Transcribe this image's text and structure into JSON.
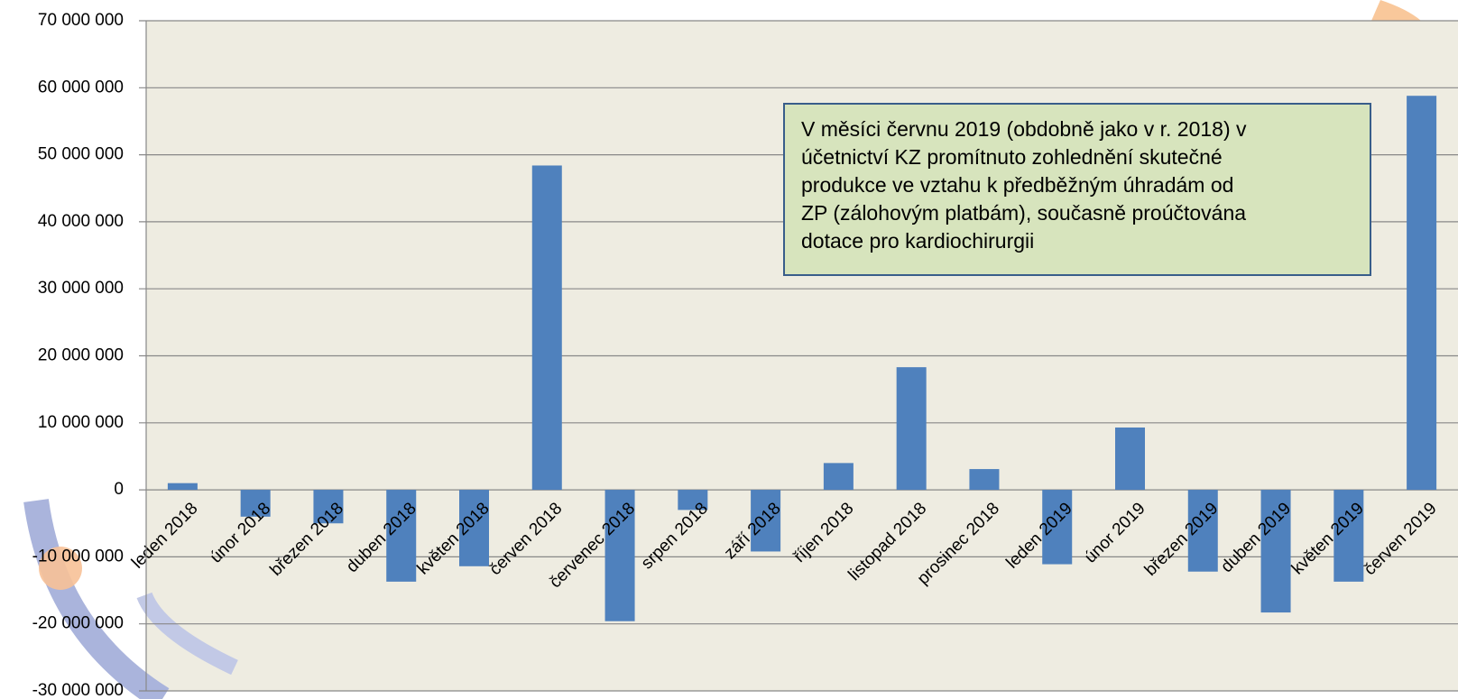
{
  "chart_data": {
    "type": "bar",
    "categories": [
      "leden 2018",
      "únor 2018",
      "březen 2018",
      "duben 2018",
      "květen 2018",
      "červen 2018",
      "červenec 2018",
      "srpen 2018",
      "září 2018",
      "říjen 2018",
      "listopad 2018",
      "prosinec 2018",
      "leden 2019",
      "únor 2019",
      "březen 2019",
      "duben 2019",
      "květen 2019",
      "červen 2019"
    ],
    "values": [
      1000000,
      -4000000,
      -5000000,
      -13700000,
      -11400000,
      48400000,
      -19600000,
      -3000000,
      -9200000,
      4000000,
      18300000,
      3100000,
      -11100000,
      9300000,
      -12200000,
      -18300000,
      -13700000,
      58800000
    ],
    "color": "#4f81bd",
    "ylim": [
      -30000000,
      70000000
    ],
    "yticks": [
      {
        "value": -30000000,
        "label": "-30 000 000"
      },
      {
        "value": -20000000,
        "label": "-20 000 000"
      },
      {
        "value": -10000000,
        "label": "-10 000 000"
      },
      0,
      {
        "value": 10000000,
        "label": "10 000 000"
      },
      {
        "value": 20000000,
        "label": "20 000 000"
      },
      {
        "value": 30000000,
        "label": "30 000 000"
      },
      {
        "value": 40000000,
        "label": "40 000 000"
      },
      {
        "value": 50000000,
        "label": "50 000 000"
      },
      {
        "value": 60000000,
        "label": "60 000 000"
      },
      {
        "value": 70000000,
        "label": "70 000 000"
      }
    ],
    "grid": true,
    "annotation": [
      "V měsíci červnu 2019 (obdobně jako v r. 2018) v",
      "účetnictví KZ promítnuto zohlednění skutečné",
      "produkce ve vztahu k předběžným úhradám od",
      "ZP (zálohovým platbám), současně proúčtována",
      "dotace pro kardiochirurgii"
    ]
  }
}
